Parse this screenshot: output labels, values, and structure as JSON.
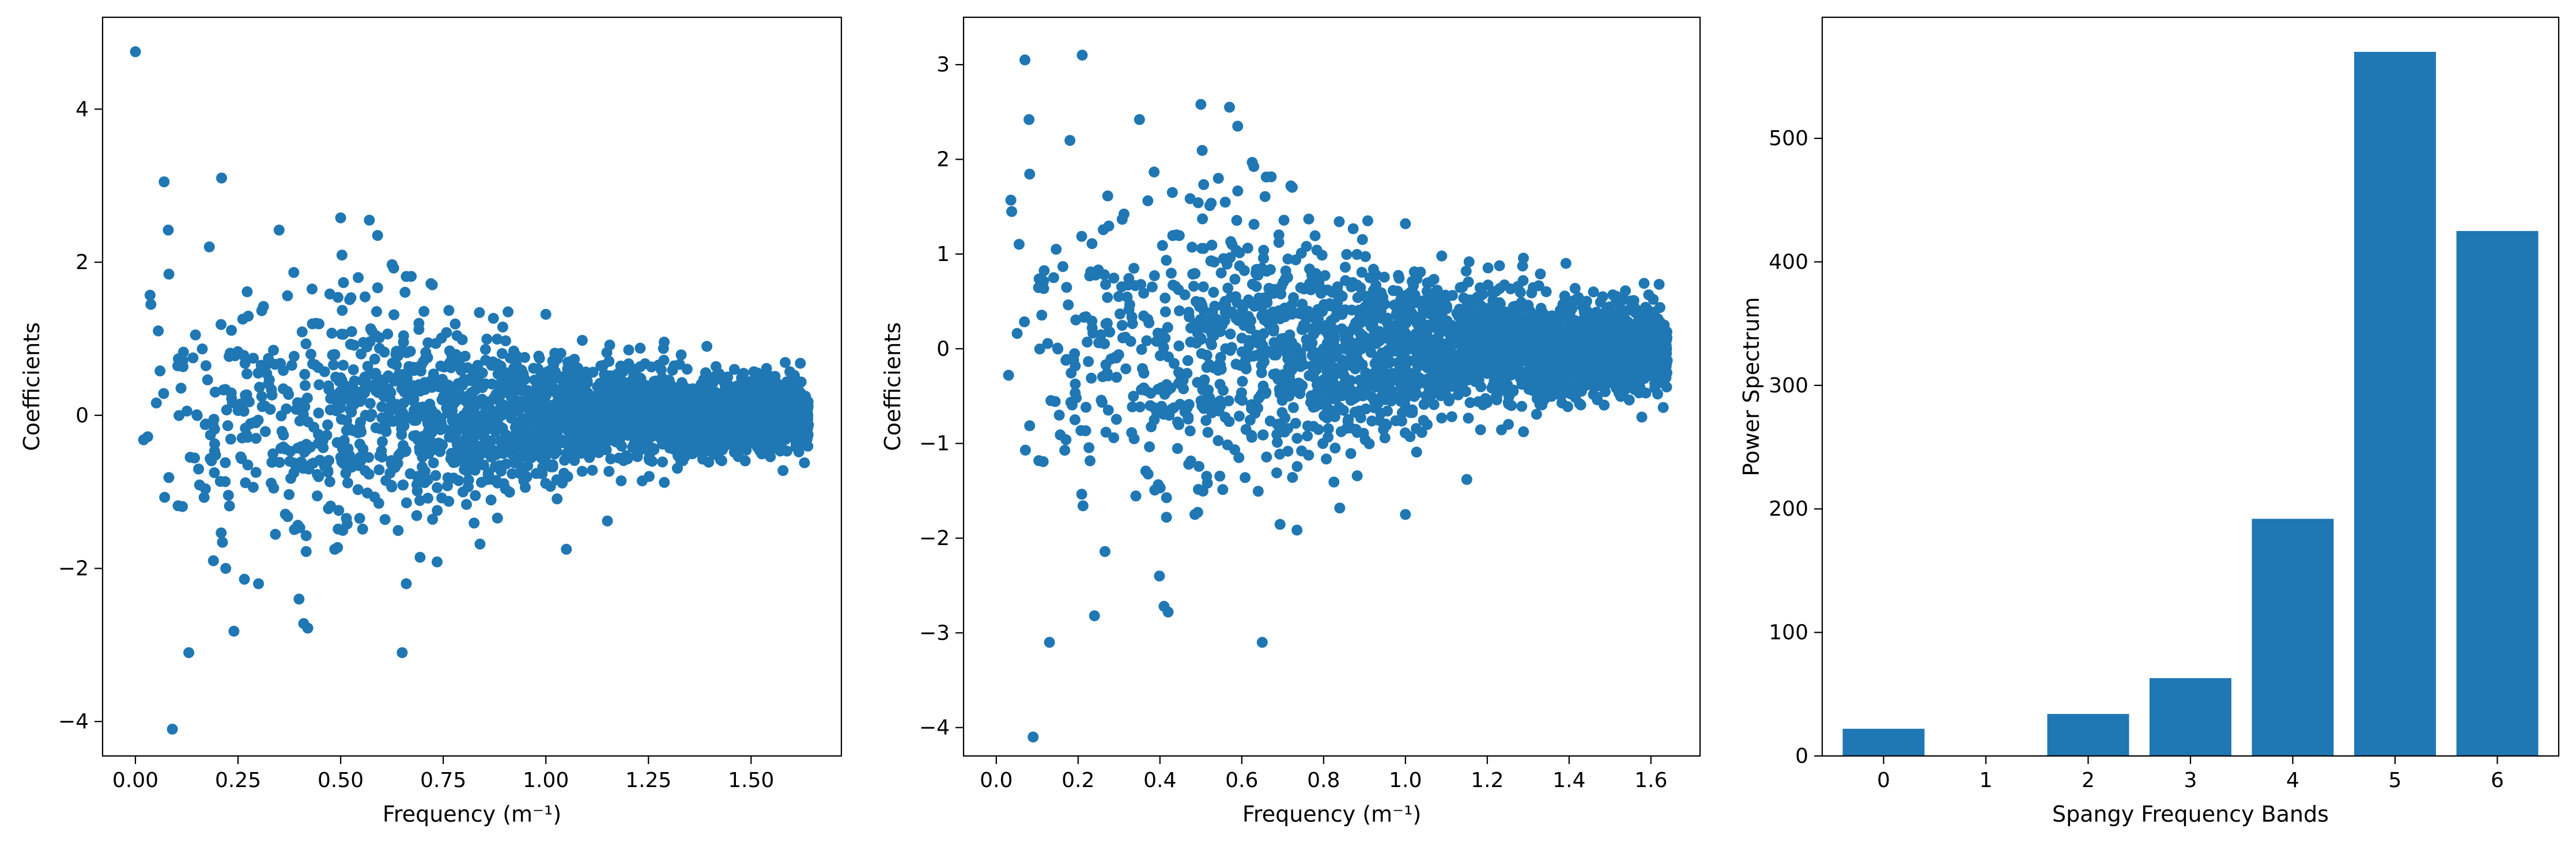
{
  "chart_data": [
    {
      "type": "scatter",
      "xlabel": "Frequency (m⁻¹)",
      "ylabel": "Coefficients",
      "xlim": [
        -0.08,
        1.72
      ],
      "ylim": [
        -4.45,
        5.2
      ],
      "xticks": [
        0.0,
        0.25,
        0.5,
        0.75,
        1.0,
        1.25,
        1.5
      ],
      "xtick_labels": [
        "0.00",
        "0.25",
        "0.50",
        "0.75",
        "1.00",
        "1.25",
        "1.50"
      ],
      "yticks": [
        -4,
        -2,
        0,
        2,
        4
      ],
      "ytick_labels": [
        "−4",
        "−2",
        "0",
        "2",
        "4"
      ],
      "grid": false,
      "color": "#1f77b4",
      "notable_points": [
        {
          "x": 0.0,
          "y": 4.75
        },
        {
          "x": 0.07,
          "y": 3.05
        },
        {
          "x": 0.21,
          "y": 3.1
        },
        {
          "x": 0.09,
          "y": -4.1
        },
        {
          "x": 0.13,
          "y": -3.1
        },
        {
          "x": 0.65,
          "y": -3.1
        },
        {
          "x": 0.24,
          "y": -2.82
        },
        {
          "x": 0.42,
          "y": -2.78
        },
        {
          "x": 0.41,
          "y": -2.72
        },
        {
          "x": 0.08,
          "y": 2.42
        },
        {
          "x": 0.35,
          "y": 2.42
        },
        {
          "x": 0.5,
          "y": 2.58
        },
        {
          "x": 0.57,
          "y": 2.55
        },
        {
          "x": 0.59,
          "y": 2.35
        },
        {
          "x": 0.18,
          "y": 2.2
        },
        {
          "x": 0.06,
          "y": 0.58
        },
        {
          "x": 0.03,
          "y": -0.28
        },
        {
          "x": 0.02,
          "y": -0.32
        },
        {
          "x": 0.19,
          "y": -1.9
        },
        {
          "x": 0.22,
          "y": -2.0
        },
        {
          "x": 0.3,
          "y": -2.2
        },
        {
          "x": 0.66,
          "y": -2.2
        },
        {
          "x": 0.72,
          "y": 1.72
        },
        {
          "x": 1.0,
          "y": 1.32
        },
        {
          "x": 1.05,
          "y": -1.75
        },
        {
          "x": 1.15,
          "y": -1.38
        },
        {
          "x": 1.62,
          "y": 0.68
        },
        {
          "x": 1.63,
          "y": -0.62
        }
      ],
      "cloud": {
        "x_range": [
          0.0,
          1.64
        ],
        "n_points": 2600,
        "spread_sd": [
          [
            0.0,
            0.9
          ],
          [
            0.5,
            0.85
          ],
          [
            1.0,
            0.4
          ],
          [
            1.64,
            0.18
          ]
        ]
      }
    },
    {
      "type": "scatter",
      "xlabel": "Frequency (m⁻¹)",
      "ylabel": "Coefficients",
      "xlim": [
        -0.08,
        1.72
      ],
      "ylim": [
        -4.3,
        3.5
      ],
      "xticks": [
        0.0,
        0.2,
        0.4,
        0.6,
        0.8,
        1.0,
        1.2,
        1.4,
        1.6
      ],
      "xtick_labels": [
        "0.0",
        "0.2",
        "0.4",
        "0.6",
        "0.8",
        "1.0",
        "1.2",
        "1.4",
        "1.6"
      ],
      "yticks": [
        -4,
        -3,
        -2,
        -1,
        0,
        1,
        2,
        3
      ],
      "ytick_labels": [
        "−4",
        "−3",
        "−2",
        "−1",
        "0",
        "1",
        "2",
        "3"
      ],
      "grid": false,
      "color": "#1f77b4",
      "notable_points": [
        {
          "x": 0.07,
          "y": 3.05
        },
        {
          "x": 0.21,
          "y": 3.1
        },
        {
          "x": 0.08,
          "y": 2.42
        },
        {
          "x": 0.09,
          "y": -4.1
        },
        {
          "x": 0.13,
          "y": -3.1
        },
        {
          "x": 0.65,
          "y": -3.1
        },
        {
          "x": 0.24,
          "y": -2.82
        },
        {
          "x": 0.41,
          "y": -2.72
        },
        {
          "x": 0.42,
          "y": -2.78
        },
        {
          "x": 0.35,
          "y": 2.42
        },
        {
          "x": 0.5,
          "y": 2.58
        },
        {
          "x": 0.57,
          "y": 2.55
        },
        {
          "x": 0.59,
          "y": 2.35
        },
        {
          "x": 0.18,
          "y": 2.2
        },
        {
          "x": 0.03,
          "y": -0.28
        },
        {
          "x": 0.72,
          "y": 1.72
        },
        {
          "x": 1.0,
          "y": 1.32
        },
        {
          "x": 1.0,
          "y": -1.75
        },
        {
          "x": 1.15,
          "y": -1.38
        },
        {
          "x": 1.62,
          "y": 0.68
        },
        {
          "x": 1.63,
          "y": -0.62
        }
      ],
      "cloud": {
        "x_range": [
          0.0,
          1.64
        ],
        "n_points": 2600,
        "spread_sd": [
          [
            0.0,
            0.9
          ],
          [
            0.5,
            0.85
          ],
          [
            1.0,
            0.4
          ],
          [
            1.64,
            0.18
          ]
        ]
      }
    },
    {
      "type": "bar",
      "xlabel": "Spangy Frequency Bands",
      "ylabel": "Power Spectrum",
      "categories": [
        "0",
        "1",
        "2",
        "3",
        "4",
        "5",
        "6"
      ],
      "values": [
        22,
        0,
        34,
        63,
        192,
        570,
        425
      ],
      "xlim": [
        -0.6,
        6.6
      ],
      "ylim": [
        0,
        598
      ],
      "yticks": [
        0,
        100,
        200,
        300,
        400,
        500
      ],
      "ytick_labels": [
        "0",
        "100",
        "200",
        "300",
        "400",
        "500"
      ],
      "grid": false,
      "color": "#1f77b4"
    }
  ]
}
